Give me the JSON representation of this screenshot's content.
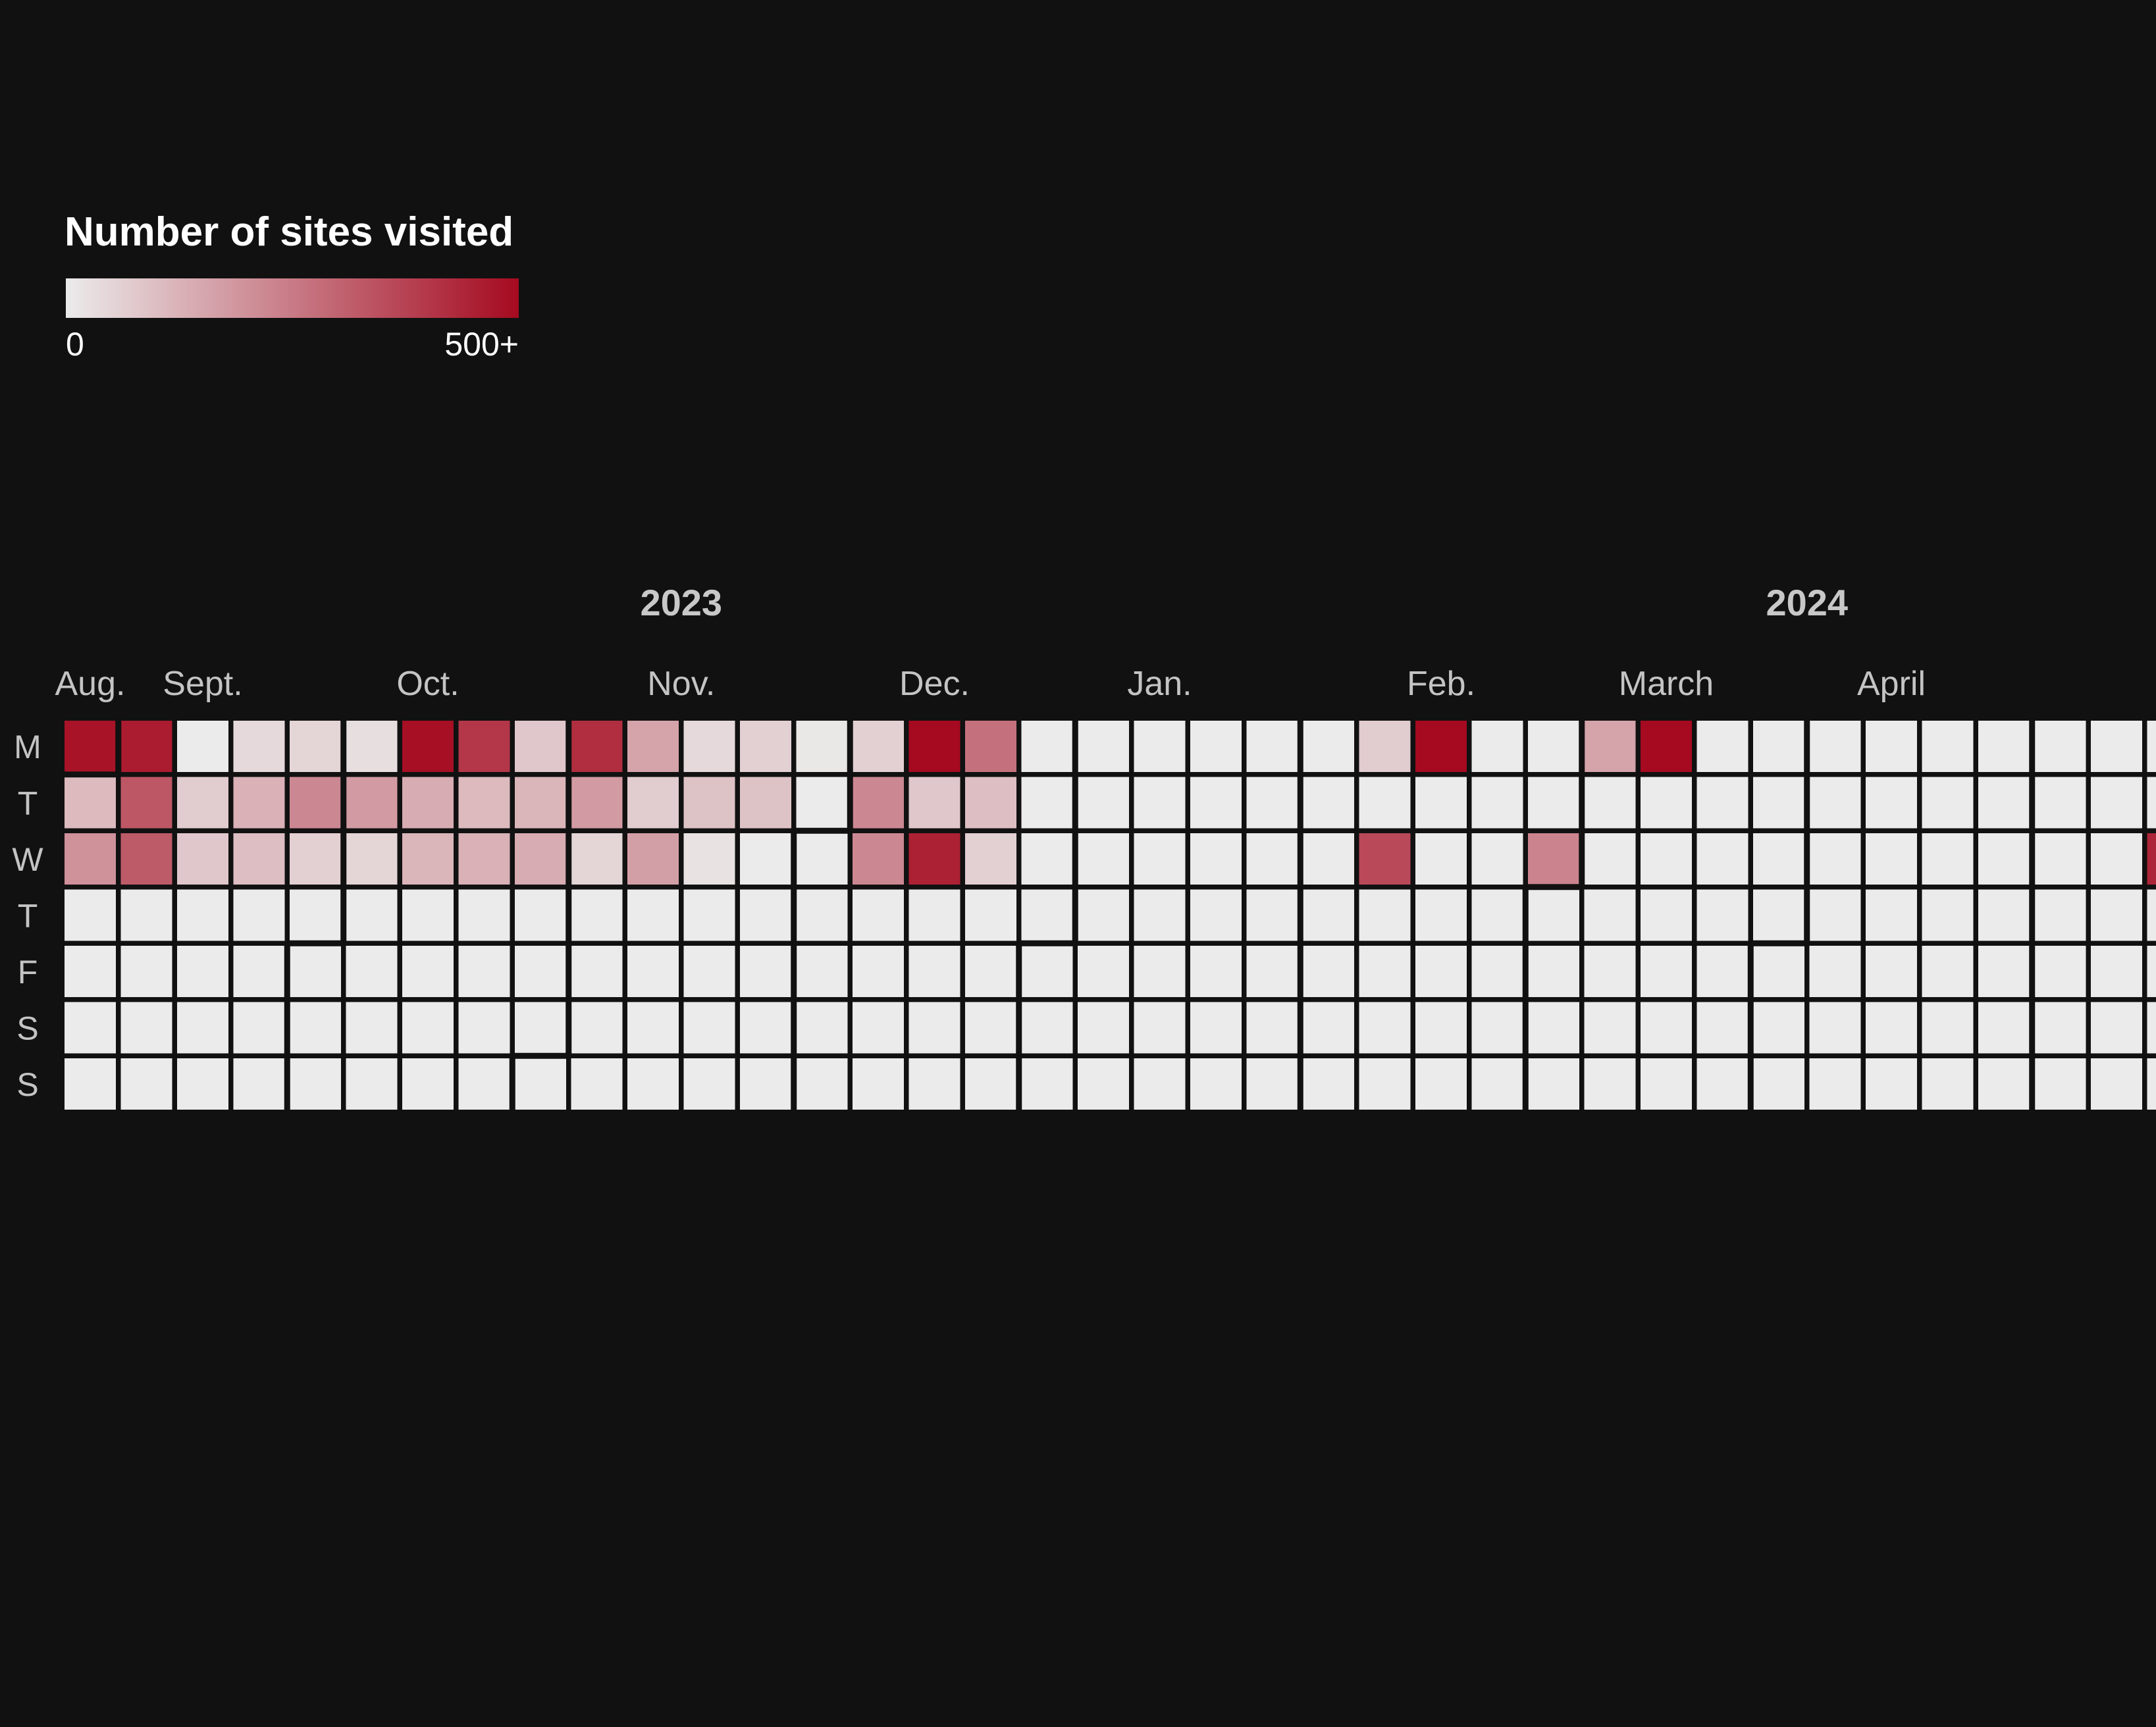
{
  "chart_data": {
    "type": "heatmap",
    "legend": {
      "title": "Number of sites visited",
      "min_label": "0",
      "max_label": "500+",
      "min_value": 0,
      "max_value": 500,
      "color_low": "#ebebeb",
      "color_high": "#a50a20"
    },
    "years": [
      "2023",
      "2024"
    ],
    "months": [
      "Aug.",
      "Sept.",
      "Oct.",
      "Nov.",
      "Dec.",
      "Jan.",
      "Feb.",
      "March",
      "April"
    ],
    "day_labels": [
      "M",
      "T",
      "W",
      "T",
      "F",
      "S",
      "S"
    ],
    "start_date": "2023-07-31",
    "end_date": "2024-04-29",
    "values": {
      "2023-07-31": 480,
      "2023-08-01": 110,
      "2023-08-02": 200,
      "2023-08-07": 460,
      "2023-08-08": 330,
      "2023-08-09": 320,
      "2023-08-14": 0,
      "2023-08-15": 70,
      "2023-08-16": 80,
      "2023-08-21": 40,
      "2023-08-22": 130,
      "2023-08-23": 100,
      "2023-08-28": 50,
      "2023-08-29": 220,
      "2023-08-30": 60,
      "2023-09-04": 30,
      "2023-09-05": 180,
      "2023-09-06": 50,
      "2023-09-11": 490,
      "2023-09-12": 140,
      "2023-09-13": 120,
      "2023-09-18": 400,
      "2023-09-19": 110,
      "2023-09-20": 130,
      "2023-09-25": 80,
      "2023-09-26": 120,
      "2023-09-27": 140,
      "2023-10-02": 420,
      "2023-10-03": 180,
      "2023-10-04": 50,
      "2023-10-09": 160,
      "2023-10-10": 70,
      "2023-10-11": 170,
      "2023-10-16": 40,
      "2023-10-17": 90,
      "2023-10-18": 20,
      "2023-10-23": 60,
      "2023-10-24": 90,
      "2023-10-25": 0,
      "2023-10-30": 10,
      "2023-10-31": 0,
      "2023-11-01": 0,
      "2023-11-06": 60,
      "2023-11-07": 220,
      "2023-11-08": 220,
      "2023-11-13": 500,
      "2023-11-14": 80,
      "2023-11-15": 450,
      "2023-11-20": 270,
      "2023-11-21": 100,
      "2023-11-22": 60,
      "2024-01-08": 70,
      "2024-01-10": 360,
      "2024-01-15": 500,
      "2024-01-31": 230,
      "2024-02-05": 160,
      "2024-02-12": 500,
      "2024-04-17": 440
    }
  }
}
